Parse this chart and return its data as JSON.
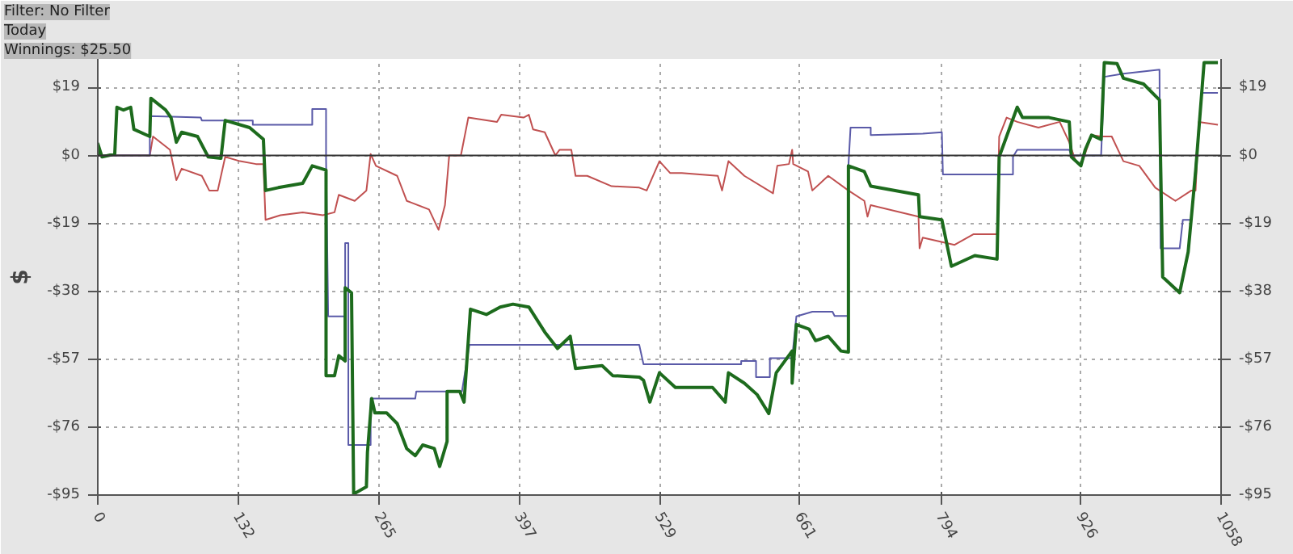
{
  "chart_data": {
    "type": "line",
    "ylabel": "$",
    "annotations": [
      "Filter: No Filter",
      "Today",
      "Winnings: $25.50"
    ],
    "xlim": [
      0,
      1058
    ],
    "xticks": [
      0,
      132,
      265,
      397,
      529,
      661,
      794,
      926,
      1058
    ],
    "ylim": [
      -95,
      27
    ],
    "yticks": [
      {
        "value": 19,
        "label": "$19"
      },
      {
        "value": 0,
        "label": "$0"
      },
      {
        "value": -19,
        "label": "-$19"
      },
      {
        "value": -38,
        "label": "-$38"
      },
      {
        "value": -57,
        "label": "-$57"
      },
      {
        "value": -76,
        "label": "-$76"
      },
      {
        "value": -95,
        "label": "-$95"
      }
    ],
    "y2lim": [
      -95,
      27
    ],
    "y2ticks": [
      {
        "value": 19,
        "label": "$19"
      },
      {
        "value": 0,
        "label": "$0"
      },
      {
        "value": -19,
        "label": "-$19"
      },
      {
        "value": -38,
        "label": "-$38"
      },
      {
        "value": -57,
        "label": "-$57"
      },
      {
        "value": -76,
        "label": "-$76"
      },
      {
        "value": -95,
        "label": "-$95"
      }
    ],
    "grid": true,
    "line_style": "solid",
    "ref_lines": [
      {
        "axis": "y",
        "value": 0,
        "color": "#333333",
        "line_style": "solid"
      }
    ],
    "series": [
      {
        "color": "#c05050",
        "x": [
          0,
          49,
          52,
          68,
          74,
          79,
          98,
          105,
          113,
          120,
          134,
          149,
          156,
          158,
          172,
          193,
          212,
          223,
          227,
          242,
          253,
          257,
          262,
          282,
          291,
          312,
          321,
          327,
          331,
          342,
          349,
          376,
          380,
          401,
          406,
          410,
          421,
          431,
          435,
          446,
          450,
          461,
          484,
          510,
          517,
          529,
          539,
          550,
          584,
          588,
          594,
          609,
          636,
          640,
          651,
          654,
          655,
          669,
          673,
          688,
          707,
          722,
          725,
          728,
          773,
          774,
          777,
          807,
          825,
          847,
          849,
          856,
          866,
          886,
          906,
          915,
          921,
          926,
          936,
          945,
          955,
          966,
          981,
          996,
          1015,
          1030,
          1034,
          1037,
          1055
        ],
        "values": [
          0,
          0,
          5.3,
          1.6,
          -6.9,
          -3.7,
          -5.7,
          -9.8,
          -9.8,
          -0.4,
          -1.6,
          -2.4,
          -2.4,
          -18,
          -16.7,
          -15.9,
          -16.7,
          -15.9,
          -11,
          -12.7,
          -9.8,
          0.4,
          -2.9,
          -5.7,
          -12.7,
          -15.1,
          -20.8,
          -13.9,
          0,
          0,
          10.6,
          9.4,
          11.4,
          10.6,
          11.4,
          7.3,
          6.5,
          0,
          1.6,
          1.6,
          -5.7,
          -5.7,
          -8.6,
          -9,
          -9.8,
          -1.6,
          -4.9,
          -4.9,
          -5.7,
          -9.8,
          -1.6,
          -5.7,
          -10.6,
          -2.9,
          -2.4,
          1.6,
          -2.4,
          -4.5,
          -9.8,
          -5.7,
          -9.8,
          -12.7,
          -17.1,
          -13.9,
          -17.1,
          -26,
          -23,
          -25,
          -22,
          -22,
          5.3,
          10.6,
          9.4,
          7.8,
          9.4,
          3.7,
          -1.6,
          -2.9,
          5.7,
          5.3,
          5.3,
          -1.6,
          -2.9,
          -9,
          -12.7,
          -9.8,
          -9.8,
          9.4,
          8.6
        ]
      },
      {
        "color": "#5a5aa8",
        "x": [
          0,
          49,
          49,
          97,
          98,
          146,
          146,
          202,
          202,
          215,
          215,
          217,
          233,
          233,
          236,
          236,
          241,
          257,
          257,
          299,
          300,
          343,
          350,
          510,
          514,
          606,
          606,
          620,
          620,
          633,
          633,
          654,
          658,
          673,
          692,
          694,
          707,
          707,
          709,
          728,
          728,
          777,
          795,
          796,
          862,
          862,
          866,
          915,
          917,
          945,
          948,
          966,
          1000,
          1001,
          1019,
          1022,
          1030,
          1034,
          1040,
          1055
        ],
        "values": [
          0,
          0,
          11,
          10.6,
          9.8,
          9.8,
          8.6,
          8.6,
          13,
          13,
          -0.8,
          -45,
          -45,
          -24.5,
          -24.5,
          -81,
          -81,
          -81,
          -68,
          -68,
          -66,
          -66,
          -53,
          -53,
          -58.4,
          -58.4,
          -57.5,
          -57.5,
          -62,
          -62,
          -56.7,
          -56.7,
          -45,
          -43.7,
          -43.7,
          -44.9,
          -44.9,
          -2.9,
          7.8,
          7.8,
          5.7,
          6.1,
          6.5,
          -5.3,
          -5.3,
          -0.4,
          1.6,
          1.6,
          0,
          0,
          22,
          22.9,
          24,
          -26,
          -26,
          -18,
          -18,
          -2.9,
          17.5,
          17.5
        ]
      },
      {
        "color": "#1d6b1d",
        "x": [
          0,
          0,
          4,
          16,
          18,
          24,
          31,
          34,
          49,
          50,
          64,
          69,
          74,
          79,
          94,
          104,
          116,
          120,
          143,
          156,
          158,
          170,
          193,
          202,
          215,
          215,
          223,
          227,
          233,
          233,
          239,
          241,
          253,
          254,
          258,
          261,
          272,
          282,
          291,
          299,
          306,
          317,
          322,
          329,
          329,
          341,
          345,
          351,
          366,
          379,
          391,
          406,
          421,
          433,
          445,
          450,
          475,
          485,
          510,
          514,
          520,
          529,
          544,
          579,
          591,
          594,
          609,
          621,
          632,
          639,
          654,
          654,
          658,
          670,
          676,
          688,
          700,
          707,
          707,
          722,
          728,
          773,
          774,
          795,
          804,
          826,
          847,
          849,
          866,
          871,
          896,
          915,
          917,
          926,
          930,
          936,
          945,
          948,
          960,
          966,
          985,
          1000,
          1003,
          1019,
          1027,
          1034,
          1042,
          1055
        ],
        "values": [
          0,
          3.3,
          -0.4,
          0.4,
          13.5,
          12.7,
          13.5,
          7.3,
          5.3,
          16,
          12.7,
          10.6,
          3.7,
          6.5,
          5.3,
          -0.4,
          -0.8,
          9.8,
          7.8,
          4.5,
          -9.8,
          -9,
          -7.8,
          -2.9,
          -4.1,
          -61.6,
          -61.6,
          -56,
          -57.5,
          -37,
          -38.4,
          -94.7,
          -92.7,
          -83,
          -68,
          -72,
          -72,
          -75,
          -82,
          -84,
          -81,
          -82,
          -87,
          -80,
          -66,
          -66,
          -69,
          -43,
          -44.5,
          -42.4,
          -41.6,
          -42.4,
          -49.4,
          -54,
          -50.6,
          -59.6,
          -58.8,
          -61.6,
          -62,
          -62.9,
          -69,
          -60.8,
          -64.9,
          -64.9,
          -69,
          -60.8,
          -63.7,
          -66.9,
          -72.2,
          -60.8,
          -54.7,
          -63.7,
          -47.3,
          -48.6,
          -51.8,
          -50.6,
          -54.7,
          -55,
          -2.9,
          -4.5,
          -8.6,
          -11,
          -17.1,
          -18,
          -31,
          -28,
          -29,
          -0.4,
          13.5,
          10.6,
          10.6,
          9.4,
          -0.4,
          -2.9,
          1.6,
          5.7,
          4.5,
          26,
          25.7,
          21.6,
          20,
          15.5,
          -34,
          -38.4,
          -27,
          -4.5,
          26,
          26
        ]
      }
    ]
  }
}
